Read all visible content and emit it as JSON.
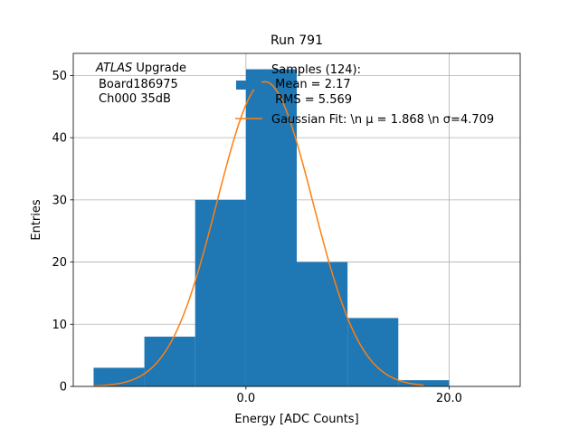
{
  "chart_data": {
    "type": "bar",
    "title": "Run 791",
    "xlabel": "Energy [ADC Counts]",
    "ylabel": "Entries",
    "xlim": [
      -17,
      27
    ],
    "ylim": [
      0,
      53.55
    ],
    "grid": true,
    "xticks": [
      0,
      20
    ],
    "xtick_labels": [
      "0.0",
      "20.0"
    ],
    "yticks": [
      0,
      10,
      20,
      30,
      40,
      50
    ],
    "ytick_labels": [
      "0",
      "10",
      "20",
      "30",
      "40",
      "50"
    ],
    "bin_edges": [
      -15,
      -10,
      -5,
      0,
      5,
      10,
      15,
      20
    ],
    "values": [
      3,
      8,
      30,
      51,
      20,
      11,
      1
    ],
    "histogram_color": "#1f77b4",
    "fit": {
      "mu": 1.868,
      "sigma": 4.709,
      "amplitude": 49,
      "x_range": [
        -15,
        17.5
      ],
      "color": "#ff7f0e"
    },
    "annotation": {
      "italic": "ATLAS",
      "rest": " Upgrade",
      "line2": "Board186975",
      "line3": "Ch000 35dB"
    },
    "legend": {
      "placement": "top-right",
      "entries": [
        "Samples (124):",
        " Mean = 2.17",
        " RMS = 5.569",
        "Gaussian Fit: \\n μ = 1.868 \\n σ=4.709"
      ]
    }
  }
}
